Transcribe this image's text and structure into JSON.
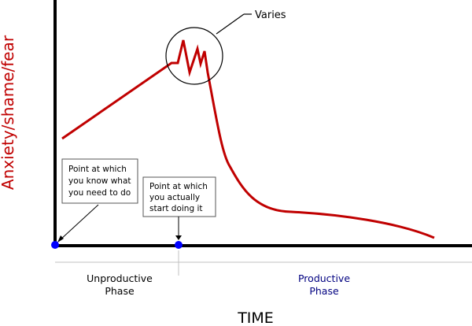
{
  "y_axis_label": "Anxiety/shame/fear",
  "x_axis_label": "TIME",
  "callout_varies": "Varies",
  "annotations": {
    "know": [
      "Point at which",
      "you know what",
      "you need to do"
    ],
    "start": [
      "Point at which",
      "you actually",
      "start doing it"
    ]
  },
  "phases": {
    "unproductive": [
      "Unproductive",
      "Phase"
    ],
    "productive": [
      "Productive",
      "Phase"
    ]
  },
  "colors": {
    "curve": "#c00000",
    "marker": "#0000ff",
    "productive_text": "#000080",
    "axis": "#000000",
    "y_label": "#c00000",
    "phase_divider": "#c0c0c0"
  }
}
